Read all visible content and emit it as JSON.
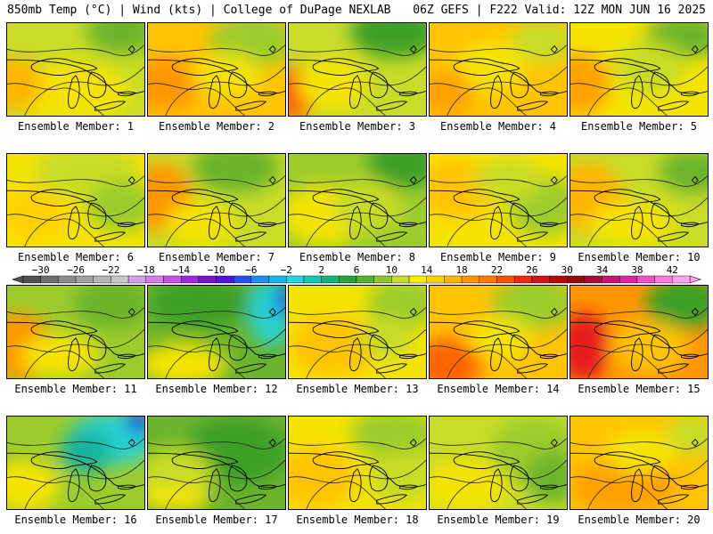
{
  "header": {
    "left": "850mb Temp (°C) | Wind (kts) | College of DuPage NEXLAB",
    "right": "06Z GEFS | F222 Valid: 12Z MON JUN 16 2025"
  },
  "panels": [
    {
      "label": "Ensemble Member: 1",
      "bg": "#c8dc28",
      "blobs": [
        [
          "#f5e400",
          70,
          80,
          70,
          35
        ],
        [
          "#ffb400",
          10,
          70,
          30,
          30
        ],
        [
          "#6cb42c",
          130,
          10,
          40,
          25
        ]
      ]
    },
    {
      "label": "Ensemble Member: 2",
      "bg": "#ffc400",
      "blobs": [
        [
          "#ff9600",
          20,
          70,
          40,
          30
        ],
        [
          "#9ccc2c",
          120,
          20,
          50,
          30
        ],
        [
          "#f5e400",
          90,
          60,
          40,
          25
        ]
      ]
    },
    {
      "label": "Ensemble Member: 3",
      "bg": "#c8dc28",
      "blobs": [
        [
          "#ff5a00",
          5,
          80,
          25,
          30
        ],
        [
          "#3ca028",
          120,
          10,
          50,
          30
        ],
        [
          "#f5e400",
          50,
          70,
          40,
          30
        ]
      ]
    },
    {
      "label": "Ensemble Member: 4",
      "bg": "#ffc400",
      "blobs": [
        [
          "#c8dc28",
          130,
          20,
          40,
          25
        ],
        [
          "#f5e400",
          70,
          50,
          40,
          30
        ],
        [
          "#ffa000",
          20,
          80,
          30,
          25
        ]
      ]
    },
    {
      "label": "Ensemble Member: 5",
      "bg": "#f5e400",
      "blobs": [
        [
          "#ffa000",
          10,
          70,
          35,
          35
        ],
        [
          "#6cb42c",
          130,
          15,
          45,
          25
        ],
        [
          "#c8dc28",
          90,
          50,
          40,
          30
        ]
      ]
    },
    {
      "label": "Ensemble Member: 6",
      "bg": "#f5e400",
      "blobs": [
        [
          "#c8dc28",
          90,
          20,
          60,
          30
        ],
        [
          "#9ccc2c",
          130,
          60,
          40,
          30
        ],
        [
          "#ffd200",
          30,
          70,
          40,
          30
        ]
      ]
    },
    {
      "label": "Ensemble Member: 7",
      "bg": "#c8dc28",
      "blobs": [
        [
          "#ff9600",
          15,
          50,
          35,
          40
        ],
        [
          "#6cb42c",
          100,
          15,
          50,
          30
        ],
        [
          "#f5e400",
          60,
          80,
          40,
          25
        ]
      ]
    },
    {
      "label": "Ensemble Member: 8",
      "bg": "#9ccc2c",
      "blobs": [
        [
          "#f5e400",
          40,
          70,
          50,
          35
        ],
        [
          "#3ca028",
          130,
          10,
          40,
          30
        ],
        [
          "#c8dc28",
          90,
          60,
          40,
          30
        ]
      ]
    },
    {
      "label": "Ensemble Member: 9",
      "bg": "#f5e400",
      "blobs": [
        [
          "#ffc400",
          30,
          40,
          45,
          35
        ],
        [
          "#9ccc2c",
          130,
          60,
          40,
          35
        ],
        [
          "#c8dc28",
          90,
          30,
          40,
          25
        ]
      ]
    },
    {
      "label": "Ensemble Member: 10",
      "bg": "#c8dc28",
      "blobs": [
        [
          "#ffb400",
          20,
          50,
          40,
          40
        ],
        [
          "#6cb42c",
          140,
          20,
          40,
          25
        ],
        [
          "#f5e400",
          70,
          80,
          50,
          25
        ]
      ]
    },
    {
      "label": "Ensemble Member: 11",
      "bg": "#9ccc2c",
      "blobs": [
        [
          "#ff9600",
          15,
          70,
          35,
          40
        ],
        [
          "#f5e400",
          60,
          80,
          45,
          25
        ],
        [
          "#6cb42c",
          120,
          20,
          45,
          30
        ]
      ]
    },
    {
      "label": "Ensemble Member: 12",
      "bg": "#6cb42c",
      "blobs": [
        [
          "#3ca028",
          60,
          20,
          60,
          30
        ],
        [
          "#28d2d2",
          140,
          30,
          25,
          40
        ],
        [
          "#f5e400",
          40,
          90,
          50,
          25
        ],
        [
          "#1e50e6",
          155,
          15,
          10,
          20
        ]
      ]
    },
    {
      "label": "Ensemble Member: 13",
      "bg": "#f5e400",
      "blobs": [
        [
          "#ffc400",
          50,
          70,
          50,
          35
        ],
        [
          "#9ccc2c",
          130,
          20,
          40,
          30
        ],
        [
          "#c8dc28",
          110,
          60,
          30,
          25
        ]
      ]
    },
    {
      "label": "Ensemble Member: 14",
      "bg": "#ffc400",
      "blobs": [
        [
          "#ff6400",
          20,
          90,
          40,
          30
        ],
        [
          "#9ccc2c",
          120,
          20,
          50,
          30
        ],
        [
          "#f5e400",
          80,
          60,
          35,
          25
        ]
      ]
    },
    {
      "label": "Ensemble Member: 15",
      "bg": "#ff9600",
      "blobs": [
        [
          "#e61e1e",
          15,
          70,
          30,
          40
        ],
        [
          "#3ca028",
          130,
          20,
          45,
          30
        ],
        [
          "#ffc400",
          90,
          70,
          45,
          30
        ]
      ]
    },
    {
      "label": "Ensemble Member: 16",
      "bg": "#9ccc2c",
      "blobs": [
        [
          "#28d2d2",
          120,
          25,
          50,
          30
        ],
        [
          "#14b4a0",
          90,
          40,
          30,
          25
        ],
        [
          "#f5e400",
          20,
          80,
          40,
          30
        ],
        [
          "#1e50e6",
          150,
          5,
          15,
          15
        ]
      ]
    },
    {
      "label": "Ensemble Member: 17",
      "bg": "#6cb42c",
      "blobs": [
        [
          "#3ca028",
          100,
          40,
          60,
          40
        ],
        [
          "#c8dc28",
          30,
          70,
          45,
          35
        ],
        [
          "#f5e400",
          30,
          95,
          40,
          15
        ]
      ]
    },
    {
      "label": "Ensemble Member: 18",
      "bg": "#f5e400",
      "blobs": [
        [
          "#ffc400",
          30,
          70,
          45,
          35
        ],
        [
          "#9ccc2c",
          120,
          20,
          50,
          30
        ],
        [
          "#c8dc28",
          130,
          70,
          40,
          30
        ]
      ]
    },
    {
      "label": "Ensemble Member: 19",
      "bg": "#c8dc28",
      "blobs": [
        [
          "#9ccc2c",
          120,
          40,
          50,
          40
        ],
        [
          "#f5e400",
          40,
          80,
          50,
          30
        ],
        [
          "#6cb42c",
          140,
          70,
          30,
          30
        ]
      ]
    },
    {
      "label": "Ensemble Member: 20",
      "bg": "#ffc400",
      "blobs": [
        [
          "#ffa000",
          60,
          80,
          60,
          30
        ],
        [
          "#c8dc28",
          140,
          20,
          30,
          25
        ],
        [
          "#f5e400",
          80,
          40,
          40,
          25
        ]
      ]
    }
  ],
  "colorbar": {
    "ticks": [
      "-30",
      "-26",
      "-22",
      "-18",
      "-14",
      "-10",
      "-6",
      "-2",
      "2",
      "6",
      "10",
      "14",
      "18",
      "22",
      "26",
      "30",
      "34",
      "38",
      "42"
    ],
    "colors": [
      "#505050",
      "#6e6e6e",
      "#8c8c8c",
      "#a0a0a0",
      "#b4b4b4",
      "#c8c8c8",
      "#d2a0f0",
      "#dc78f0",
      "#c850e6",
      "#a028dc",
      "#7814c8",
      "#5014dc",
      "#2850f0",
      "#1e8cf0",
      "#14b4f0",
      "#28d2e6",
      "#14c8b4",
      "#14b478",
      "#28a03c",
      "#50b42c",
      "#8cc82c",
      "#c8dc28",
      "#f5f000",
      "#ffd200",
      "#ffb400",
      "#ff9600",
      "#ff7800",
      "#ff5000",
      "#f02814",
      "#d21414",
      "#b40a0a",
      "#960a0a",
      "#aa0a3c",
      "#c8146e",
      "#dc28a0",
      "#f050c8",
      "#ff78dc",
      "#ffa0f0"
    ]
  }
}
